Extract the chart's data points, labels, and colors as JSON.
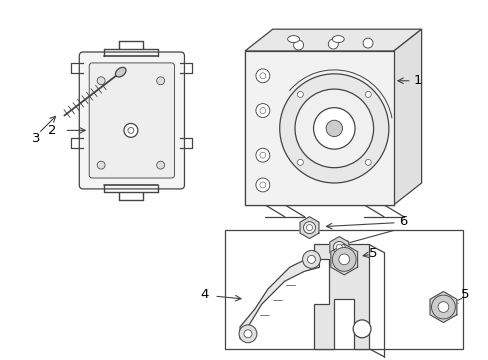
{
  "background_color": "#ffffff",
  "line_color": "#444444",
  "label_color": "#000000",
  "figure_width": 4.89,
  "figure_height": 3.6,
  "dpi": 100
}
